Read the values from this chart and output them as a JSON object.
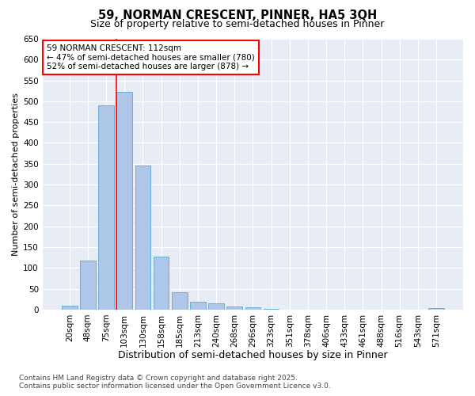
{
  "title_line1": "59, NORMAN CRESCENT, PINNER, HA5 3QH",
  "title_line2": "Size of property relative to semi-detached houses in Pinner",
  "xlabel": "Distribution of semi-detached houses by size in Pinner",
  "ylabel": "Number of semi-detached properties",
  "categories": [
    "20sqm",
    "48sqm",
    "75sqm",
    "103sqm",
    "130sqm",
    "158sqm",
    "185sqm",
    "213sqm",
    "240sqm",
    "268sqm",
    "296sqm",
    "323sqm",
    "351sqm",
    "378sqm",
    "406sqm",
    "433sqm",
    "461sqm",
    "488sqm",
    "516sqm",
    "543sqm",
    "571sqm"
  ],
  "values": [
    10,
    118,
    490,
    522,
    345,
    127,
    42,
    18,
    15,
    7,
    5,
    2,
    0,
    0,
    0,
    0,
    0,
    0,
    0,
    0,
    3
  ],
  "bar_color": "#aec6e8",
  "bar_edge_color": "#6baed6",
  "plot_bg_color": "#e8ecf5",
  "fig_bg_color": "#ffffff",
  "grid_color": "#ffffff",
  "red_line_bar_index": 3,
  "annotation_line1": "59 NORMAN CRESCENT: 112sqm",
  "annotation_line2": "← 47% of semi-detached houses are smaller (780)",
  "annotation_line3": "52% of semi-detached houses are larger (878) →",
  "ylim": [
    0,
    650
  ],
  "yticks": [
    0,
    50,
    100,
    150,
    200,
    250,
    300,
    350,
    400,
    450,
    500,
    550,
    600,
    650
  ],
  "footer_line1": "Contains HM Land Registry data © Crown copyright and database right 2025.",
  "footer_line2": "Contains public sector information licensed under the Open Government Licence v3.0.",
  "title_fontsize": 10.5,
  "subtitle_fontsize": 9,
  "xlabel_fontsize": 9,
  "ylabel_fontsize": 8,
  "tick_fontsize": 7.5,
  "annotation_fontsize": 7.5,
  "footer_fontsize": 6.5
}
